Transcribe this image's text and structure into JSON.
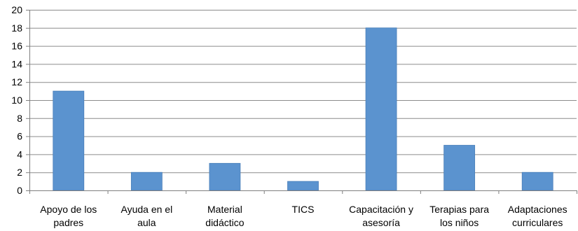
{
  "chart_data": {
    "type": "bar",
    "title": "",
    "xlabel": "",
    "ylabel": "",
    "categories": [
      [
        "Apoyo de los",
        "padres"
      ],
      [
        "Ayuda en el",
        "aula"
      ],
      [
        "Material",
        "didáctico"
      ],
      [
        "TICS"
      ],
      [
        "Capacitación y",
        "asesoría"
      ],
      [
        "Terapias para",
        "los niños"
      ],
      [
        "Adaptaciones",
        "curriculares"
      ]
    ],
    "values": [
      11,
      2,
      3,
      1,
      18,
      5,
      2
    ],
    "ylim": [
      0,
      20
    ],
    "yticks": [
      0,
      2,
      4,
      6,
      8,
      10,
      12,
      14,
      16,
      18,
      20
    ],
    "grid": true,
    "legend": "none",
    "colors": {
      "bar": "#5b93cf",
      "bar_stroke": "#4a7fb8",
      "grid": "#8c8c8c",
      "axis": "#7f7f7f"
    }
  }
}
